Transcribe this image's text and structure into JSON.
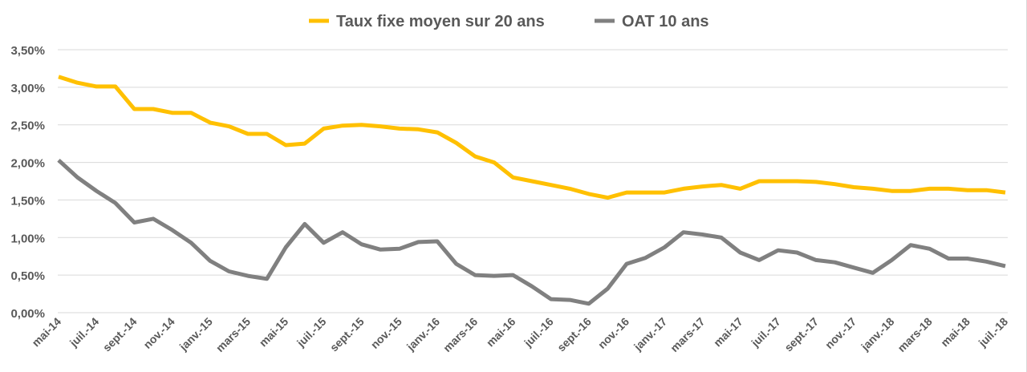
{
  "chart_data": {
    "type": "line",
    "title": "",
    "xlabel": "",
    "ylabel": "",
    "ylim": [
      0,
      3.5
    ],
    "y_ticks": [
      "0,00%",
      "0,50%",
      "1,00%",
      "1,50%",
      "2,00%",
      "2,50%",
      "3,00%",
      "3,50%"
    ],
    "grid": true,
    "legend_position": "top",
    "x_tick_labels": [
      "mai-14",
      "juil.-14",
      "sept.-14",
      "nov.-14",
      "janv.-15",
      "mars-15",
      "mai-15",
      "juil.-15",
      "sept.-15",
      "nov.-15",
      "janv.-16",
      "mars-16",
      "mai-16",
      "juil.-16",
      "sept.-16",
      "nov.-16",
      "janv.-17",
      "mars-17",
      "mai-17",
      "juil.-17",
      "sept.-17",
      "nov.-17",
      "janv.-18",
      "mars-18",
      "mai-18",
      "juil.-18"
    ],
    "x_period": "monthly, mai-14 to juil.-18",
    "series": [
      {
        "name": "Taux fixe moyen sur 20 ans",
        "color": "#FFC000",
        "values": [
          3.14,
          3.06,
          3.01,
          3.01,
          2.71,
          2.71,
          2.66,
          2.66,
          2.53,
          2.48,
          2.38,
          2.38,
          2.23,
          2.25,
          2.45,
          2.49,
          2.5,
          2.48,
          2.45,
          2.44,
          2.4,
          2.26,
          2.08,
          2.0,
          1.8,
          1.75,
          1.7,
          1.65,
          1.58,
          1.53,
          1.6,
          1.6,
          1.6,
          1.65,
          1.68,
          1.7,
          1.65,
          1.75,
          1.75,
          1.75,
          1.74,
          1.71,
          1.67,
          1.65,
          1.62,
          1.62,
          1.65,
          1.65,
          1.63,
          1.63,
          1.6
        ]
      },
      {
        "name": "OAT 10 ans",
        "color": "#808080",
        "values": [
          2.03,
          1.8,
          1.62,
          1.46,
          1.2,
          1.25,
          1.1,
          0.93,
          0.69,
          0.55,
          0.49,
          0.45,
          0.87,
          1.18,
          0.93,
          1.07,
          0.91,
          0.84,
          0.85,
          0.94,
          0.95,
          0.65,
          0.5,
          0.49,
          0.5,
          0.35,
          0.18,
          0.17,
          0.12,
          0.32,
          0.65,
          0.73,
          0.87,
          1.07,
          1.04,
          1.0,
          0.8,
          0.7,
          0.83,
          0.8,
          0.7,
          0.67,
          0.6,
          0.53,
          0.7,
          0.9,
          0.85,
          0.72,
          0.72,
          0.68,
          0.62
        ]
      }
    ]
  }
}
